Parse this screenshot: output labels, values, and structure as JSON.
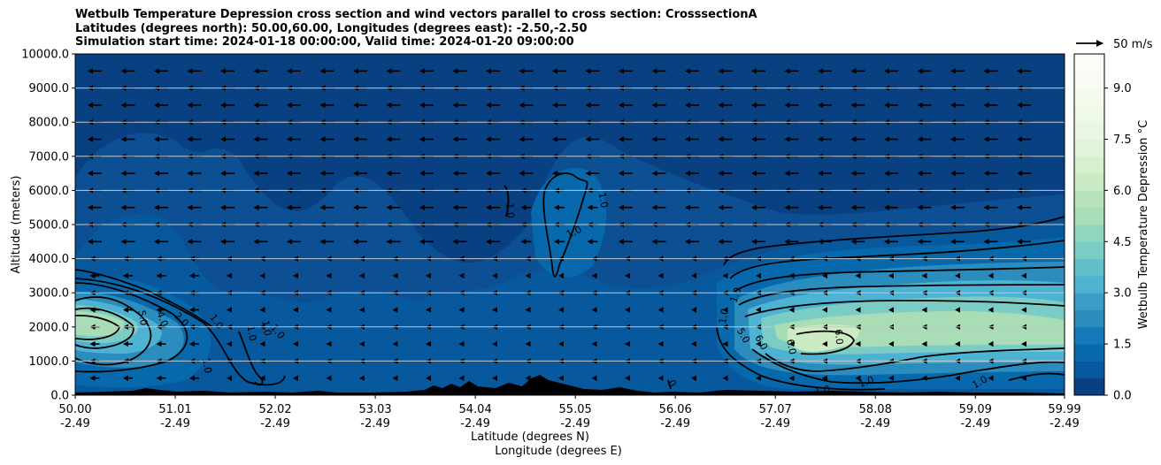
{
  "title": {
    "line1": "Wetbulb Temperature Depression cross section and wind vectors parallel to cross section: CrosssectionA",
    "line2": "Latitudes (degrees north): 50.00,60.00, Longitudes (degrees east): -2.50,-2.50",
    "line3": "Simulation start time: 2024-01-18 00:00:00, Valid time: 2024-01-20 09:00:00"
  },
  "chart_data": {
    "type": "heatmap",
    "subtype": "filled-contour cross section with wind vectors",
    "ylabel": "Altitude (meters)",
    "xlabel_line1": "Latitude (degrees N)",
    "xlabel_line2": "Longitude (degrees E)",
    "xlim": [
      50.0,
      59.99
    ],
    "ylim": [
      0,
      10000
    ],
    "x_ticks": [
      {
        "value": 50.0,
        "lat": "50.00",
        "lon": "-2.49"
      },
      {
        "value": 51.01,
        "lat": "51.01",
        "lon": "-2.49"
      },
      {
        "value": 52.02,
        "lat": "52.02",
        "lon": "-2.49"
      },
      {
        "value": 53.03,
        "lat": "53.03",
        "lon": "-2.49"
      },
      {
        "value": 54.04,
        "lat": "54.04",
        "lon": "-2.49"
      },
      {
        "value": 55.05,
        "lat": "55.05",
        "lon": "-2.49"
      },
      {
        "value": 56.06,
        "lat": "56.06",
        "lon": "-2.49"
      },
      {
        "value": 57.07,
        "lat": "57.07",
        "lon": "-2.49"
      },
      {
        "value": 58.08,
        "lat": "58.08",
        "lon": "-2.49"
      },
      {
        "value": 59.09,
        "lat": "59.09",
        "lon": "-2.49"
      },
      {
        "value": 59.99,
        "lat": "59.99",
        "lon": "-2.49"
      }
    ],
    "y_ticks": [
      {
        "value": 0,
        "label": "0.0"
      },
      {
        "value": 1000,
        "label": "1000.0"
      },
      {
        "value": 2000,
        "label": "2000.0"
      },
      {
        "value": 3000,
        "label": "3000.0"
      },
      {
        "value": 4000,
        "label": "4000.0"
      },
      {
        "value": 5000,
        "label": "5000.0"
      },
      {
        "value": 6000,
        "label": "6000.0"
      },
      {
        "value": 7000,
        "label": "7000.0"
      },
      {
        "value": 8000,
        "label": "8000.0"
      },
      {
        "value": 9000,
        "label": "9000.0"
      },
      {
        "value": 10000,
        "label": "10000.0"
      }
    ],
    "grid": "horizontal",
    "colorbar": {
      "label": "Wetbulb Temperature Depression °C",
      "range": [
        0,
        10
      ],
      "levels": 20,
      "ticks": [
        {
          "value": 0.0,
          "label": "0.0"
        },
        {
          "value": 1.5,
          "label": "1.5"
        },
        {
          "value": 3.0,
          "label": "3.0"
        },
        {
          "value": 4.5,
          "label": "4.5"
        },
        {
          "value": 6.0,
          "label": "6.0"
        },
        {
          "value": 7.5,
          "label": "7.5"
        },
        {
          "value": 9.0,
          "label": "9.0"
        }
      ],
      "colors": [
        "#084081",
        "#08589e",
        "#0868ac",
        "#1479b6",
        "#2b8cbe",
        "#3a9dc8",
        "#4eb3d3",
        "#62c0cc",
        "#7bccc4",
        "#90d5c0",
        "#a8ddb5",
        "#b6e3bb",
        "#ccebc5",
        "#d7efce",
        "#e0f3db",
        "#e8f6e3",
        "#f0f9e8",
        "#f4fbef",
        "#f8fcf5",
        "#fafdf8"
      ]
    },
    "wind_reference": {
      "label": "50 m/s",
      "speed": 50
    },
    "wind_vectors_direction": "leftward (southward along section)",
    "contour_labels": [
      {
        "value": "5.0",
        "x": 50.65,
        "y": 2250,
        "rot": 80
      },
      {
        "value": "4.0",
        "x": 50.85,
        "y": 2200,
        "rot": 70
      },
      {
        "value": "2.0",
        "x": 51.05,
        "y": 2150,
        "rot": 45
      },
      {
        "value": "1.0",
        "x": 51.4,
        "y": 2100,
        "rot": 55
      },
      {
        "value": "1.0",
        "x": 51.75,
        "y": 1800,
        "rot": 80
      },
      {
        "value": "1.0",
        "x": 51.9,
        "y": 1950,
        "rot": 80
      },
      {
        "value": "1.0",
        "x": 52.02,
        "y": 1800,
        "rot": 50
      },
      {
        "value": "1.0",
        "x": 51.3,
        "y": 850,
        "rot": 80
      },
      {
        "value": "1.0",
        "x": 54.36,
        "y": 5400,
        "rot": 85
      },
      {
        "value": "1.0",
        "x": 55.3,
        "y": 5700,
        "rot": 80
      },
      {
        "value": "1.0",
        "x": 55.05,
        "y": 4700,
        "rot": -25
      },
      {
        "value": "1.0",
        "x": 56.7,
        "y": 2900,
        "rot": -70
      },
      {
        "value": "1.0",
        "x": 56.58,
        "y": 2300,
        "rot": -80
      },
      {
        "value": "5.0",
        "x": 56.72,
        "y": 1700,
        "rot": 60
      },
      {
        "value": "6.0",
        "x": 56.9,
        "y": 1500,
        "rot": 60
      },
      {
        "value": "6.0",
        "x": 57.2,
        "y": 1400,
        "rot": 80
      },
      {
        "value": "6.0",
        "x": 57.68,
        "y": 1700,
        "rot": 85
      },
      {
        "value": "1.0",
        "x": 59.15,
        "y": 300,
        "rot": -30
      },
      {
        "value": "1.0",
        "x": 58.0,
        "y": 300,
        "rot": -20
      },
      {
        "value": "1.0",
        "x": 57.55,
        "y": 50,
        "rot": -10
      },
      {
        "value": "0",
        "x": 56.0,
        "y": 300,
        "rot": 60
      }
    ]
  }
}
